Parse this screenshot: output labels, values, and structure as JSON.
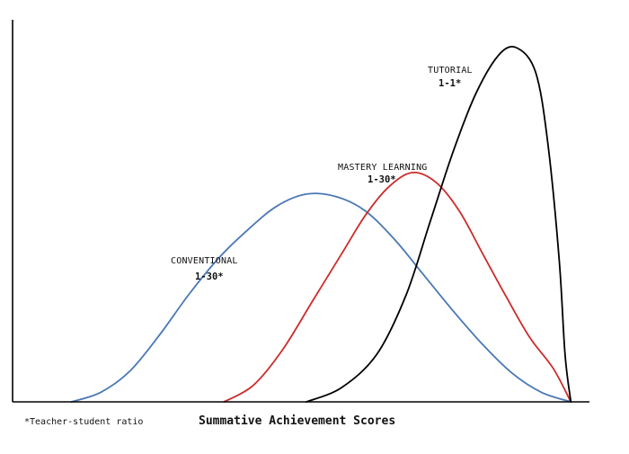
{
  "chart_data": {
    "type": "line",
    "xlabel": "Summative Achievement Scores",
    "ylabel": "",
    "footnote": "*Teacher-student ratio",
    "grid": false,
    "legend": "none",
    "series": [
      {
        "name": "CONVENTIONAL",
        "ratio": "1-30*",
        "color": "#4a78b5",
        "points": [
          [
            0.1,
            0.0
          ],
          [
            0.15,
            0.04
          ],
          [
            0.2,
            0.13
          ],
          [
            0.25,
            0.28
          ],
          [
            0.3,
            0.45
          ],
          [
            0.35,
            0.6
          ],
          [
            0.4,
            0.72
          ],
          [
            0.45,
            0.82
          ],
          [
            0.5,
            0.87
          ],
          [
            0.55,
            0.86
          ],
          [
            0.6,
            0.8
          ],
          [
            0.65,
            0.68
          ],
          [
            0.7,
            0.53
          ],
          [
            0.75,
            0.38
          ],
          [
            0.8,
            0.24
          ],
          [
            0.85,
            0.12
          ],
          [
            0.9,
            0.04
          ],
          [
            0.95,
            0.0
          ]
        ]
      },
      {
        "name": "MASTERY LEARNING",
        "ratio": "1-30*",
        "color": "#cc2b2b",
        "points": [
          [
            0.36,
            0.0
          ],
          [
            0.41,
            0.07
          ],
          [
            0.46,
            0.22
          ],
          [
            0.51,
            0.42
          ],
          [
            0.56,
            0.62
          ],
          [
            0.6,
            0.78
          ],
          [
            0.64,
            0.9
          ],
          [
            0.68,
            0.96
          ],
          [
            0.72,
            0.92
          ],
          [
            0.76,
            0.8
          ],
          [
            0.8,
            0.62
          ],
          [
            0.84,
            0.44
          ],
          [
            0.88,
            0.27
          ],
          [
            0.92,
            0.14
          ],
          [
            0.95,
            0.0
          ]
        ]
      },
      {
        "name": "TUTORIAL",
        "ratio": "1-1*",
        "color": "#000000",
        "points": [
          [
            0.5,
            0.0
          ],
          [
            0.56,
            0.06
          ],
          [
            0.62,
            0.2
          ],
          [
            0.67,
            0.45
          ],
          [
            0.71,
            0.75
          ],
          [
            0.75,
            1.05
          ],
          [
            0.79,
            1.3
          ],
          [
            0.83,
            1.46
          ],
          [
            0.86,
            1.48
          ],
          [
            0.89,
            1.38
          ],
          [
            0.91,
            1.1
          ],
          [
            0.93,
            0.6
          ],
          [
            0.94,
            0.2
          ],
          [
            0.95,
            0.0
          ]
        ]
      }
    ],
    "xlim": [
      0,
      1
    ],
    "ylim": [
      0,
      1.6
    ]
  }
}
